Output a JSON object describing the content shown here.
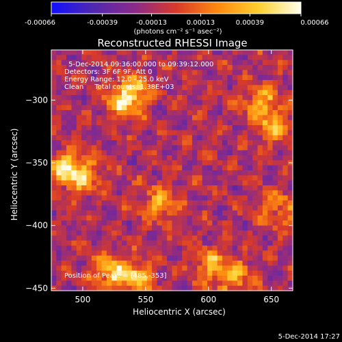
{
  "chart_data": {
    "type": "heatmap",
    "title": "Reconstructed RHESSI Image",
    "xlabel": "Heliocentric X (arcsec)",
    "ylabel": "Heliocentric Y (arcsec)",
    "xlim": [
      475,
      667
    ],
    "ylim": [
      -452,
      -260
    ],
    "xticks": [
      500,
      550,
      600,
      650
    ],
    "yticks": [
      -300,
      -350,
      -400,
      -450
    ],
    "colorbar": {
      "min": -0.00066,
      "max": 0.00066,
      "ticks": [
        -0.00066,
        -0.00039,
        -0.00013,
        0.00013,
        0.00039,
        0.00066
      ],
      "tick_labels": [
        "-0.00066",
        "-0.00039",
        "-0.00013",
        "0.00013",
        "0.00039",
        "0.00066"
      ],
      "units_label": "(photons cm⁻² s⁻¹ asec⁻²)",
      "colors": [
        "#1010ff",
        "#5028b0",
        "#8a2a8a",
        "#d83a2a",
        "#ff8a10",
        "#ffd030",
        "#fffff0"
      ]
    },
    "annotations": [
      "5-Dec-2014 09:36:00.000 to 09:39:12.000",
      "Detectors: 3F 6F 9F, Att 0",
      "Energy Range: 12.0 - 25.0 keV",
      "Clean     Total counts: 1.38E+03",
      "Position of Peak: = [485,-353]"
    ],
    "peak": {
      "x": 485,
      "y": -353
    },
    "bright_sources": [
      {
        "x": 530,
        "y": -300,
        "level": 0.0005
      },
      {
        "x": 540,
        "y": -290,
        "level": 0.00045
      },
      {
        "x": 485,
        "y": -353,
        "level": 0.00066
      },
      {
        "x": 500,
        "y": -360,
        "level": 0.0004
      },
      {
        "x": 560,
        "y": -380,
        "level": 0.00045
      },
      {
        "x": 520,
        "y": -435,
        "level": 0.00055
      },
      {
        "x": 540,
        "y": -440,
        "level": 0.0005
      },
      {
        "x": 640,
        "y": -300,
        "level": 0.00045
      },
      {
        "x": 650,
        "y": -320,
        "level": 0.0004
      },
      {
        "x": 600,
        "y": -430,
        "level": 0.00045
      },
      {
        "x": 620,
        "y": -440,
        "level": 0.0004
      },
      {
        "x": 655,
        "y": -385,
        "level": 0.0004
      }
    ]
  },
  "footer": {
    "timestamp": "5-Dec-2014 17:27"
  }
}
